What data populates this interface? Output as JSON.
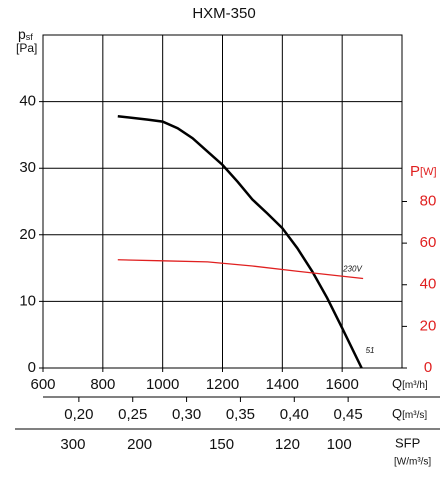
{
  "chart_data": {
    "type": "line",
    "title": "HXM-350",
    "y_label": {
      "main": "p",
      "sub": "sf",
      "unit": "[Pa]"
    },
    "y2_label": {
      "main": "P",
      "unit": "[W]"
    },
    "x_label": {
      "main": "Q",
      "unit": "[m³/h]"
    },
    "x2_label": {
      "main": "Q",
      "unit": "[m³/s]"
    },
    "x3_label": {
      "main": "SFP",
      "unit": "[W/m³/s]"
    },
    "xlim": [
      600,
      1800
    ],
    "xticks": [
      600,
      800,
      1000,
      1200,
      1400,
      1600
    ],
    "ylim": [
      0,
      50
    ],
    "yticks": [
      0,
      10,
      20,
      30,
      40
    ],
    "y2lim": [
      0,
      160
    ],
    "y2ticks": [
      0,
      20,
      40,
      60,
      80
    ],
    "x2lim": [
      0.1667,
      0.5
    ],
    "x2ticks": [
      {
        "value": 0.2,
        "label": "0,20"
      },
      {
        "value": 0.25,
        "label": "0,25"
      },
      {
        "value": 0.3,
        "label": "0,30"
      },
      {
        "value": 0.35,
        "label": "0,35"
      },
      {
        "value": 0.4,
        "label": "0,40"
      },
      {
        "value": 0.45,
        "label": "0,45"
      }
    ],
    "sfp_ticks": [
      {
        "value": 300,
        "flow": 700
      },
      {
        "value": 200,
        "flow": 923
      },
      {
        "value": 150,
        "flow": 1197
      },
      {
        "value": 120,
        "flow": 1417
      },
      {
        "value": 100,
        "flow": 1590
      }
    ],
    "grid": true,
    "series": [
      {
        "name": "51",
        "color": "#000000",
        "x": [
          850,
          950,
          1000,
          1050,
          1100,
          1150,
          1200,
          1250,
          1300,
          1350,
          1400,
          1450,
          1500,
          1550,
          1600,
          1665
        ],
        "values": [
          37.8,
          37.3,
          37,
          36,
          34.5,
          32.5,
          30.5,
          28,
          25.3,
          23.2,
          21,
          18,
          14.5,
          10.5,
          6,
          0
        ]
      },
      {
        "name": "230V",
        "color": "#e02020",
        "axis": "y2",
        "x": [
          850,
          1000,
          1150,
          1300,
          1450,
          1670
        ],
        "values": [
          52,
          51.5,
          51,
          49,
          46.5,
          43
        ]
      }
    ]
  }
}
